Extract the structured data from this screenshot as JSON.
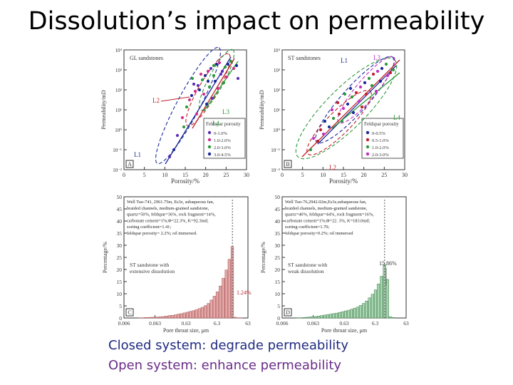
{
  "slide": {
    "title": "Dissolution’s impact on permeability",
    "caption_closed": "Closed system:  degrade permeability",
    "caption_open": "Open system:  enhance permeability"
  },
  "panel_a": {
    "heading": "GL sandstones",
    "letter": "A",
    "ylabel": "Permeability/mD",
    "xlabel": "Porosity/%",
    "legend_title": "Feldspar porosity",
    "legend": [
      "0-1.0%",
      "1.0-2.0%",
      "2.0-3.0%",
      "3.0-4.5%"
    ],
    "legend_colors": [
      "#5b2fb3",
      "#d0308a",
      "#2a9a3a",
      "#1a2a9a"
    ],
    "lines": [
      "L2",
      "L3",
      "L4",
      "L1"
    ]
  },
  "panel_b": {
    "heading": "ST sandstones",
    "letter": "B",
    "ylabel": "Permeability/mD",
    "xlabel": "Porosity/%",
    "legend_title": "Feldspar porosity",
    "legend": [
      "0-0.5%",
      "0.5-1.0%",
      "1.0-2.0%",
      "2.0-3.0%"
    ],
    "legend_colors": [
      "#1a2a9a",
      "#c0202a",
      "#2a9a3a",
      "#c030c0"
    ],
    "lines": [
      "L1",
      "L3",
      "L4",
      "L2"
    ]
  },
  "panel_c": {
    "letter": "C",
    "ylabel": "Percentage/%",
    "xlabel": "Pore  throat size, μm",
    "note": [
      "Well Tuo-741, 2961.75m, Es3z, subaqueous fan,",
      "braided channels, medium-grained sandstone,",
      "quartz=50%, feldspar=36%, rock fragment=14%,",
      "carbonate cement=1%;Φ=22.3%, K=92.3md;",
      "sorting coefficient=1.41;",
      "feldspar porosity= 2.2%; oil immersed."
    ],
    "label": [
      "ST sandstone with",
      "extensive dissolution"
    ],
    "annotation": "1.24%",
    "bar_color": "#e3a7a7",
    "bar_edge": "#b06060"
  },
  "panel_d": {
    "letter": "D",
    "ylabel": "Percentage/%",
    "xlabel": "Pore  throat size, μm",
    "note": [
      "Well Tuo-76,2942.02m,Es3z,subaqueous fan,",
      "braided channels, medium-grained sandstone,",
      "quartz=40%, feldspar=44%, rock fragment=16%,",
      "carbonate cement=1%;Φ=22. 3%, K=183.0md;",
      "sorting coefficient=1.70;",
      "feldspar porosity=0.2%; oil immersed"
    ],
    "label": [
      "ST sandstone with",
      "weak dissolution"
    ],
    "annotation": "15.86%",
    "bar_color": "#a8d4b0",
    "bar_edge": "#4e8a5a"
  },
  "axes": {
    "log_ticks": [
      "10⁴",
      "10³",
      "10²",
      "10¹",
      "10⁰",
      "10⁻¹",
      "10⁻²"
    ],
    "porosity_ticks": [
      "0",
      "5",
      "10",
      "15",
      "20",
      "25",
      "30"
    ],
    "pct_ticks": [
      "0",
      "5",
      "10",
      "15",
      "20",
      "25",
      "30",
      "35",
      "40",
      "45",
      "50"
    ],
    "size_ticks": [
      "0.006",
      "0.063",
      "0.63",
      "6.3",
      "63"
    ]
  }
}
